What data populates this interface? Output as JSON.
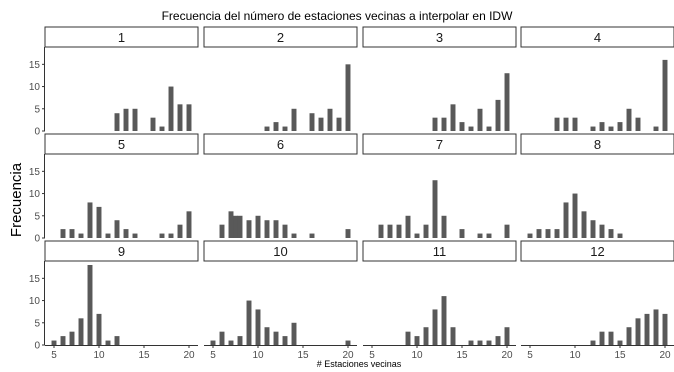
{
  "chart_data": {
    "type": "bar",
    "title": "Frecuencia del número de estaciones vecinas a interpolar en IDW",
    "xlabel": "# Estaciones vecinas",
    "ylabel": "Frecuencia",
    "xlim": [
      4,
      21
    ],
    "ylim": [
      0,
      18
    ],
    "x_ticks": [
      5,
      10,
      15,
      20
    ],
    "y_ticks": [
      0,
      5,
      10,
      15
    ],
    "bar_color": "#595959",
    "strip_fill": "#ffffff",
    "grid": false,
    "facets": [
      {
        "label": "1",
        "bars": [
          [
            12,
            4
          ],
          [
            13,
            5
          ],
          [
            14,
            5
          ],
          [
            16,
            3
          ],
          [
            17,
            1
          ],
          [
            18,
            10
          ],
          [
            19,
            6
          ],
          [
            20,
            6
          ]
        ]
      },
      {
        "label": "2",
        "bars": [
          [
            11,
            1
          ],
          [
            12,
            2
          ],
          [
            13,
            1
          ],
          [
            14,
            5
          ],
          [
            16,
            4
          ],
          [
            17,
            3
          ],
          [
            18,
            5
          ],
          [
            19,
            3
          ],
          [
            20,
            15
          ]
        ]
      },
      {
        "label": "3",
        "bars": [
          [
            12,
            3
          ],
          [
            13,
            3
          ],
          [
            14,
            6
          ],
          [
            15,
            2
          ],
          [
            16,
            1
          ],
          [
            17,
            5
          ],
          [
            18,
            1
          ],
          [
            19,
            7
          ],
          [
            20,
            13
          ]
        ]
      },
      {
        "label": "4",
        "bars": [
          [
            8,
            3
          ],
          [
            9,
            3
          ],
          [
            10,
            3
          ],
          [
            12,
            1
          ],
          [
            13,
            2
          ],
          [
            14,
            1
          ],
          [
            15,
            2
          ],
          [
            16,
            5
          ],
          [
            17,
            3
          ],
          [
            19,
            1
          ],
          [
            20,
            16
          ]
        ]
      },
      {
        "label": "5",
        "bars": [
          [
            6,
            2
          ],
          [
            7,
            2
          ],
          [
            8,
            1
          ],
          [
            9,
            8
          ],
          [
            10,
            7
          ],
          [
            11,
            1
          ],
          [
            12,
            4
          ],
          [
            13,
            2
          ],
          [
            14,
            1
          ],
          [
            17,
            1
          ],
          [
            18,
            1
          ],
          [
            19,
            3
          ],
          [
            20,
            6
          ]
        ]
      },
      {
        "label": "6",
        "bars": [
          [
            6,
            3
          ],
          [
            7,
            6
          ],
          [
            7.5,
            5
          ],
          [
            8,
            5
          ],
          [
            9,
            4
          ],
          [
            10,
            5
          ],
          [
            11,
            4
          ],
          [
            12,
            4
          ],
          [
            13,
            3
          ],
          [
            14,
            1
          ],
          [
            16,
            1
          ],
          [
            20,
            2
          ]
        ]
      },
      {
        "label": "7",
        "bars": [
          [
            6,
            3
          ],
          [
            7,
            3
          ],
          [
            8,
            3
          ],
          [
            9,
            5
          ],
          [
            10,
            1
          ],
          [
            11,
            3
          ],
          [
            12,
            13
          ],
          [
            13,
            5
          ],
          [
            15,
            2
          ],
          [
            17,
            1
          ],
          [
            18,
            1
          ],
          [
            20,
            3
          ]
        ]
      },
      {
        "label": "8",
        "bars": [
          [
            5,
            1
          ],
          [
            6,
            2
          ],
          [
            7,
            2
          ],
          [
            8,
            2
          ],
          [
            9,
            8
          ],
          [
            10,
            10
          ],
          [
            11,
            6
          ],
          [
            12,
            4
          ],
          [
            13,
            3
          ],
          [
            14,
            2
          ],
          [
            15,
            1
          ]
        ]
      },
      {
        "label": "9",
        "bars": [
          [
            5,
            1
          ],
          [
            6,
            2
          ],
          [
            7,
            3
          ],
          [
            8,
            6
          ],
          [
            9,
            18
          ],
          [
            10,
            7
          ],
          [
            11,
            1
          ],
          [
            12,
            2
          ]
        ]
      },
      {
        "label": "10",
        "bars": [
          [
            5,
            1
          ],
          [
            6,
            3
          ],
          [
            7,
            1
          ],
          [
            8,
            2
          ],
          [
            9,
            10
          ],
          [
            10,
            8
          ],
          [
            11,
            4
          ],
          [
            12,
            3
          ],
          [
            13,
            2
          ],
          [
            14,
            5
          ],
          [
            20,
            1
          ]
        ]
      },
      {
        "label": "11",
        "bars": [
          [
            9,
            3
          ],
          [
            10,
            2
          ],
          [
            11,
            4
          ],
          [
            12,
            8
          ],
          [
            13,
            11
          ],
          [
            14,
            4
          ],
          [
            16,
            1
          ],
          [
            17,
            1
          ],
          [
            18,
            1
          ],
          [
            19,
            2
          ],
          [
            20,
            4
          ]
        ]
      },
      {
        "label": "12",
        "bars": [
          [
            12,
            1
          ],
          [
            13,
            3
          ],
          [
            14,
            3
          ],
          [
            15,
            1
          ],
          [
            16,
            4
          ],
          [
            17,
            6
          ],
          [
            18,
            7
          ],
          [
            19,
            8
          ],
          [
            20,
            7
          ]
        ]
      }
    ]
  }
}
